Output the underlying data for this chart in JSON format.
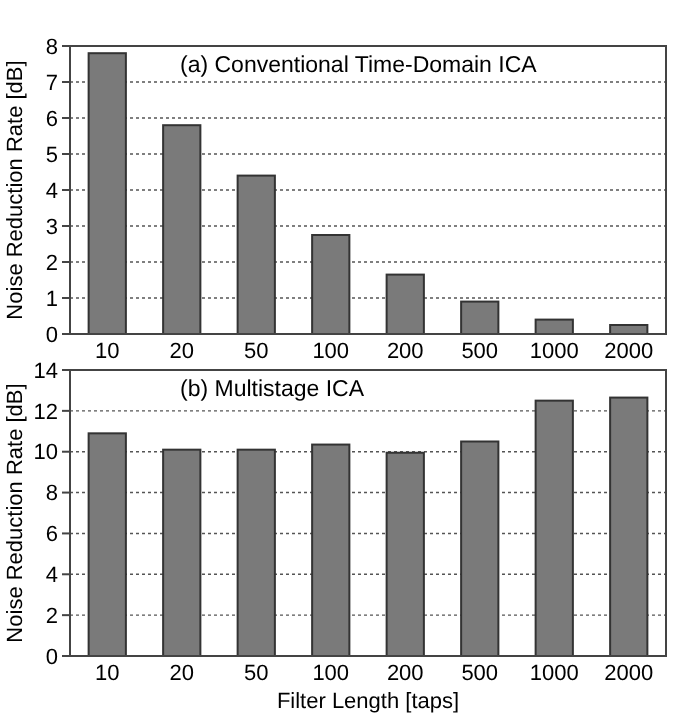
{
  "chart_data": [
    {
      "type": "bar",
      "title": "(a) Conventional Time-Domain ICA",
      "ylabel": "Noise Reduction Rate [dB]",
      "categories": [
        "10",
        "20",
        "50",
        "100",
        "200",
        "500",
        "1000",
        "2000"
      ],
      "values": [
        7.8,
        5.8,
        4.4,
        2.75,
        1.65,
        0.9,
        0.4,
        0.25
      ],
      "color": "#7a7a7a",
      "ylim": [
        0,
        8
      ],
      "yticks": [
        0,
        1,
        2,
        3,
        4,
        5,
        6,
        7,
        8
      ],
      "grid": "y"
    },
    {
      "type": "bar",
      "title": "(b) Multistage ICA",
      "ylabel": "Noise Reduction Rate [dB]",
      "xlabel": "Filter Length [taps]",
      "categories": [
        "10",
        "20",
        "50",
        "100",
        "200",
        "500",
        "1000",
        "2000"
      ],
      "values": [
        10.9,
        10.1,
        10.1,
        10.35,
        9.95,
        10.5,
        12.5,
        12.65
      ],
      "color": "#7a7a7a",
      "ylim": [
        0,
        14
      ],
      "yticks": [
        0,
        2,
        4,
        6,
        8,
        10,
        12,
        14
      ],
      "grid": "y"
    }
  ]
}
